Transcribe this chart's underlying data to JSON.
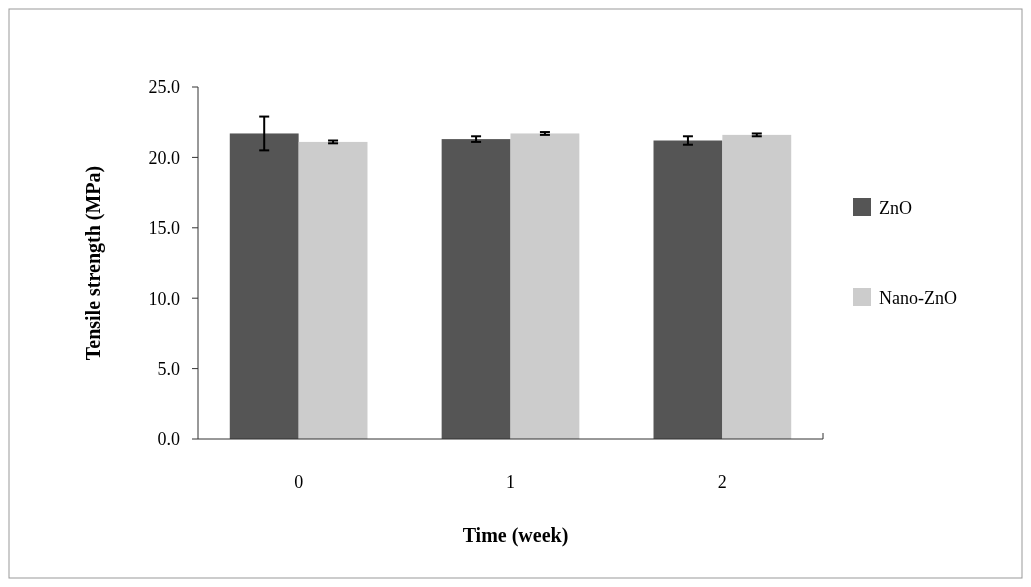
{
  "chart_data": {
    "type": "bar",
    "xlabel": "Time (week)",
    "ylabel": "Tensile strength (MPa)",
    "categories": [
      "0",
      "1",
      "2"
    ],
    "series": [
      {
        "name": "ZnO",
        "color": "#555555",
        "values": [
          21.7,
          21.3,
          21.2
        ],
        "errors": [
          1.2,
          0.2,
          0.3
        ]
      },
      {
        "name": "Nano-ZnO",
        "color": "#cccccc",
        "values": [
          21.1,
          21.7,
          21.6
        ],
        "errors": [
          0.1,
          0.1,
          0.1
        ]
      }
    ],
    "ylim": [
      0,
      25
    ],
    "yticks": [
      {
        "value": 0,
        "label": "0.0"
      },
      {
        "value": 5,
        "label": "5.0"
      },
      {
        "value": 10,
        "label": "10.0"
      },
      {
        "value": 15,
        "label": "15.0"
      },
      {
        "value": 20,
        "label": "20.0"
      },
      {
        "value": 25,
        "label": "25.0"
      }
    ],
    "legend": "right",
    "grid": false
  }
}
